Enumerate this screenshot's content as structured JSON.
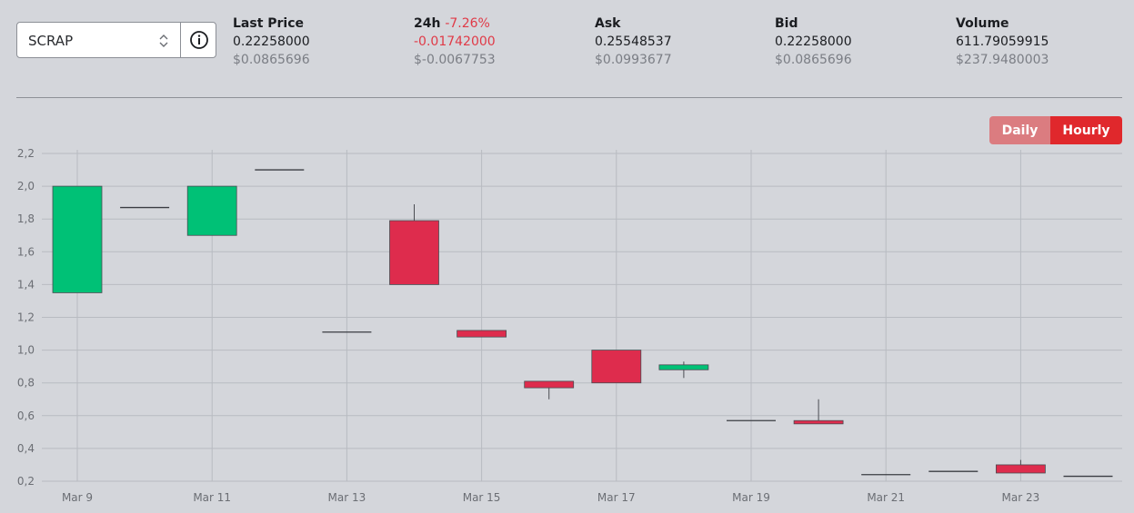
{
  "selector": {
    "value": "SCRAP",
    "arrows_icon": "chevron-up-down-icon",
    "info_icon": "info-circle-icon"
  },
  "stats": [
    {
      "label": "Last Price",
      "change": "",
      "value": "0.22258000",
      "usd": "$0.0865696",
      "value_color": "#1b1d21"
    },
    {
      "label": "24h",
      "change": "-7.26%",
      "value": "-0.01742000",
      "usd": "$-0.0067753",
      "value_color": "#e03a47"
    },
    {
      "label": "Ask",
      "change": "",
      "value": "0.25548537",
      "usd": "$0.0993677",
      "value_color": "#1b1d21"
    },
    {
      "label": "Bid",
      "change": "",
      "value": "0.22258000",
      "usd": "$0.0865696",
      "value_color": "#1b1d21"
    },
    {
      "label": "Volume",
      "change": "",
      "value": "611.79059915",
      "usd": "$237.9480003",
      "value_color": "#1b1d21"
    }
  ],
  "toggle": {
    "daily": "Daily",
    "hourly": "Hourly",
    "active": "hourly"
  },
  "colors": {
    "up": "#00c176",
    "down": "#de2c4d",
    "accent": "#e0282c",
    "grid": "#b8bbc1"
  },
  "chart_data": {
    "type": "candlestick",
    "xlabel": "",
    "ylabel": "",
    "ylim": [
      0.2,
      2.2
    ],
    "yticks": [
      "2,2",
      "2,0",
      "1,8",
      "1,6",
      "1,4",
      "1,2",
      "1,0",
      "0,8",
      "0,6",
      "0,4",
      "0,2"
    ],
    "xticks": [
      "Mar 9",
      "Mar 11",
      "Mar 13",
      "Mar 15",
      "Mar 17",
      "Mar 19",
      "Mar 21",
      "Mar 23"
    ],
    "grid": true,
    "candles": [
      {
        "date": "Mar 9",
        "open": 1.35,
        "high": 2.0,
        "low": 1.35,
        "close": 2.0
      },
      {
        "date": "Mar 10",
        "open": 1.87,
        "high": 1.87,
        "low": 1.87,
        "close": 1.87
      },
      {
        "date": "Mar 11",
        "open": 1.7,
        "high": 2.0,
        "low": 1.7,
        "close": 2.0
      },
      {
        "date": "Mar 12",
        "open": 2.1,
        "high": 2.1,
        "low": 2.1,
        "close": 2.1
      },
      {
        "date": "Mar 13",
        "open": 1.11,
        "high": 1.11,
        "low": 1.11,
        "close": 1.11
      },
      {
        "date": "Mar 14",
        "open": 1.79,
        "high": 1.89,
        "low": 1.4,
        "close": 1.4
      },
      {
        "date": "Mar 15",
        "open": 1.12,
        "high": 1.12,
        "low": 1.08,
        "close": 1.08
      },
      {
        "date": "Mar 16",
        "open": 0.81,
        "high": 0.81,
        "low": 0.7,
        "close": 0.77
      },
      {
        "date": "Mar 17",
        "open": 1.0,
        "high": 1.0,
        "low": 0.8,
        "close": 0.8
      },
      {
        "date": "Mar 18",
        "open": 0.88,
        "high": 0.93,
        "low": 0.83,
        "close": 0.91
      },
      {
        "date": "Mar 19",
        "open": 0.57,
        "high": 0.57,
        "low": 0.57,
        "close": 0.57
      },
      {
        "date": "Mar 20",
        "open": 0.57,
        "high": 0.7,
        "low": 0.55,
        "close": 0.55
      },
      {
        "date": "Mar 21",
        "open": 0.24,
        "high": 0.24,
        "low": 0.24,
        "close": 0.24
      },
      {
        "date": "Mar 22",
        "open": 0.26,
        "high": 0.26,
        "low": 0.26,
        "close": 0.26
      },
      {
        "date": "Mar 23",
        "open": 0.3,
        "high": 0.33,
        "low": 0.25,
        "close": 0.25
      },
      {
        "date": "Mar 24",
        "open": 0.23,
        "high": 0.23,
        "low": 0.23,
        "close": 0.23
      }
    ]
  }
}
